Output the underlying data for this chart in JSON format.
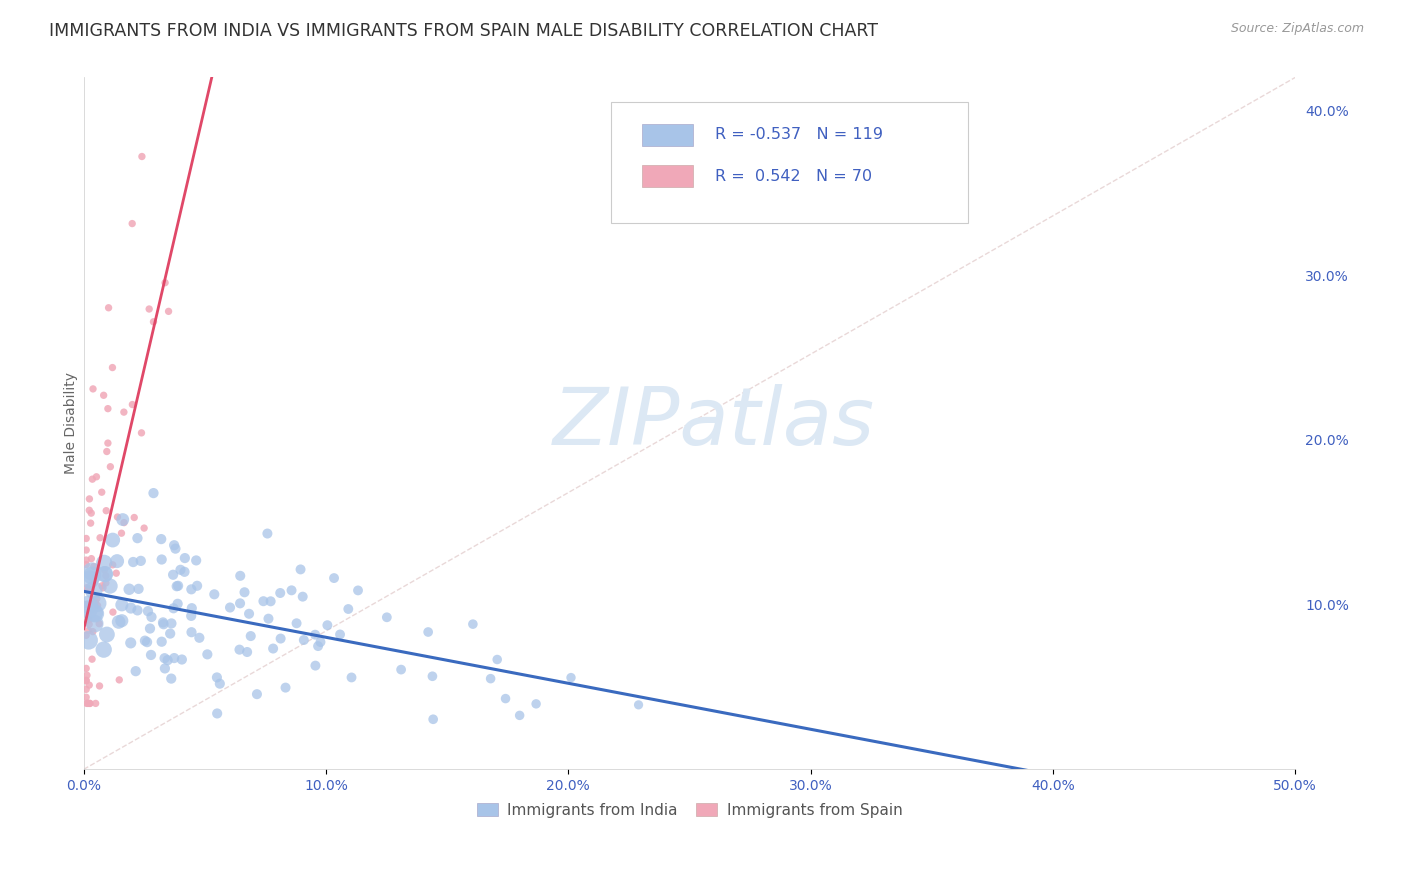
{
  "title": "IMMIGRANTS FROM INDIA VS IMMIGRANTS FROM SPAIN MALE DISABILITY CORRELATION CHART",
  "source": "Source: ZipAtlas.com",
  "ylabel": "Male Disability",
  "xlim": [
    0.0,
    0.5
  ],
  "ylim": [
    0.0,
    0.42
  ],
  "x_ticks": [
    0.0,
    0.1,
    0.2,
    0.3,
    0.4,
    0.5
  ],
  "y_ticks_right": [
    0.1,
    0.2,
    0.3,
    0.4
  ],
  "legend_blue_label": "Immigrants from India",
  "legend_pink_label": "Immigrants from Spain",
  "R_blue": "-0.537",
  "N_blue": "119",
  "R_pink": "0.542",
  "N_pink": "70",
  "color_blue": "#a8c4e8",
  "color_pink": "#f0a8b8",
  "color_blue_line": "#3a6abf",
  "color_pink_line": "#e04868",
  "color_blue_text": "#4060c0",
  "color_title": "#333333",
  "color_source": "#999999",
  "watermark_color": "#dce8f4",
  "background_color": "#ffffff",
  "grid_color": "#d0d8e8",
  "title_fontsize": 12.5,
  "label_fontsize": 10,
  "tick_fontsize": 10,
  "legend_fontsize": 11,
  "diag_color": "#e0c8c8",
  "diag_linestyle": "--"
}
